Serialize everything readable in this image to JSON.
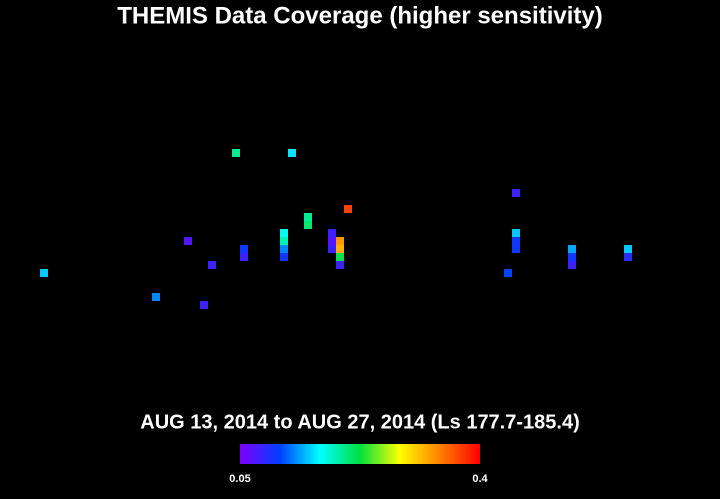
{
  "chart_data": {
    "type": "heatmap",
    "title": "THEMIS Data Coverage (higher sensitivity)",
    "subtitle": "AUG 13, 2014 to AUG 27, 2014 (Ls 177.7-185.4)",
    "x": [
      5,
      19,
      25,
      23,
      26,
      29,
      36,
      30,
      30,
      35,
      35,
      35,
      35,
      38,
      38,
      43,
      41,
      41,
      41,
      42,
      42,
      42,
      42,
      64,
      64,
      64,
      64,
      63,
      71,
      71,
      71,
      78,
      78
    ],
    "y": [
      33,
      36,
      37,
      29,
      32,
      18,
      18,
      30,
      31,
      28,
      29,
      30,
      31,
      26,
      27,
      25,
      28,
      29,
      30,
      29,
      30,
      31,
      32,
      23,
      28,
      29,
      30,
      33,
      30,
      31,
      32,
      30,
      31
    ],
    "values": [
      0.15,
      0.13,
      0.08,
      0.07,
      0.08,
      0.2,
      0.16,
      0.1,
      0.08,
      0.17,
      0.19,
      0.13,
      0.1,
      0.2,
      0.21,
      0.37,
      0.08,
      0.07,
      0.08,
      0.33,
      0.32,
      0.22,
      0.08,
      0.08,
      0.15,
      0.1,
      0.1,
      0.11,
      0.14,
      0.1,
      0.08,
      0.15,
      0.09
    ],
    "xlim": [
      0,
      90
    ],
    "ylim": [
      0,
      61
    ],
    "clim": [
      0.05,
      0.4
    ],
    "cticks": [
      0.05,
      0.4
    ],
    "colormap": [
      "#8000ff",
      "#0040ff",
      "#00ffff",
      "#00e040",
      "#ffff00",
      "#ff8000",
      "#ff0000"
    ]
  }
}
